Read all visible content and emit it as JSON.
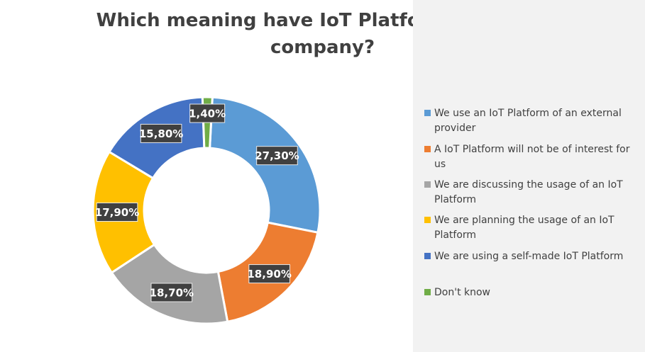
{
  "title": {
    "line1": "Which meaning have IoT Platforms for your",
    "line2": "company?"
  },
  "chart_data": {
    "type": "pie",
    "donut": true,
    "title": "Which meaning have IoT Platforms for your company?",
    "legend_position": "right",
    "label_background": "#404040",
    "label_color": "#ffffff",
    "slices": [
      {
        "name": "We use an IoT Platform of an external provider",
        "value": 27.3,
        "label": "27,30%",
        "color": "#5b9bd5"
      },
      {
        "name": "A IoT Platform will not be of interest for us",
        "value": 18.9,
        "label": "18,90%",
        "color": "#ed7d31"
      },
      {
        "name": "We are discussing the usage of an IoT Platform",
        "value": 18.7,
        "label": "18,70%",
        "color": "#a5a5a5"
      },
      {
        "name": "We are planning the usage of an IoT Platform",
        "value": 17.9,
        "label": "17,90%",
        "color": "#ffc000"
      },
      {
        "name": "We are using a self-made IoT Platform",
        "value": 15.8,
        "label": "15,80%",
        "color": "#4472c4"
      },
      {
        "name": "Don't know",
        "value": 1.4,
        "label": "1,40%",
        "color": "#70ad47"
      }
    ]
  }
}
